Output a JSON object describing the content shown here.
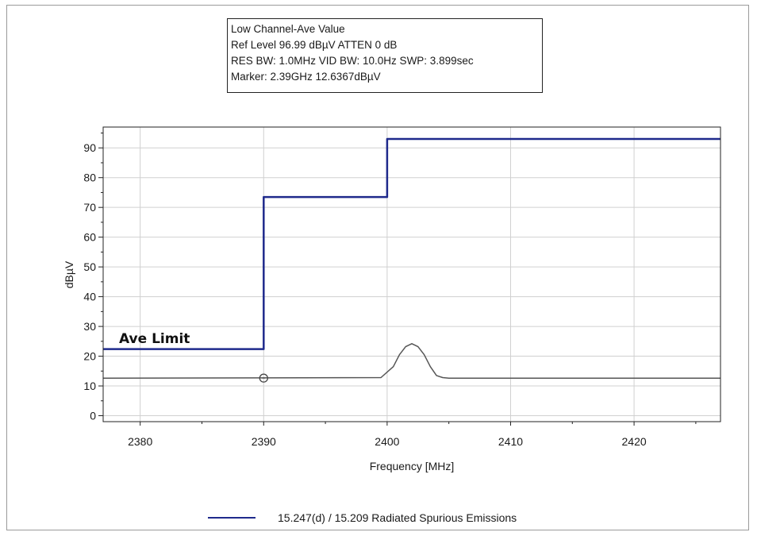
{
  "info_box": {
    "line1": "Low Channel-Ave Value",
    "line2": "Ref Level 96.99 dBµV    ATTEN 0 dB",
    "line3": "RES BW: 1.0MHz  VID BW: 10.0Hz  SWP: 3.899sec",
    "line4": "Marker: 2.39GHz  12.6367dBµV"
  },
  "legend": {
    "label": "15.247(d) / 15.209 Radiated Spurious Emissions",
    "color": "#1f2a8c"
  },
  "chart_data": {
    "type": "line",
    "xlabel": "Frequency [MHz]",
    "ylabel": "dBµV",
    "xlim": [
      2377,
      2427
    ],
    "ylim": [
      -2,
      97
    ],
    "x_ticks": [
      2380,
      2390,
      2400,
      2410,
      2420
    ],
    "y_ticks": [
      0,
      10,
      20,
      30,
      40,
      50,
      60,
      70,
      80,
      90
    ],
    "grid": true,
    "legend_position": "bottom",
    "annotation": "Ave Limit",
    "marker": {
      "x": 2390,
      "y": 12.6367
    },
    "series": [
      {
        "name": "15.247(d) / 15.209 Radiated Spurious Emissions",
        "color": "#1f2a8c",
        "x": [
          2377,
          2390,
          2390,
          2400,
          2400,
          2427
        ],
        "y": [
          22.4,
          22.4,
          73.5,
          73.5,
          93,
          93
        ]
      },
      {
        "color": "#555555",
        "x": [
          2377,
          2399.5,
          2400.5,
          2401,
          2401.5,
          2402,
          2402.5,
          2403,
          2403.5,
          2404,
          2404.5,
          2405,
          2427
        ],
        "y": [
          12.6,
          12.8,
          16.5,
          20.5,
          23.2,
          24.2,
          23.2,
          20.5,
          16.5,
          13.5,
          12.8,
          12.6,
          12.6
        ]
      }
    ]
  }
}
